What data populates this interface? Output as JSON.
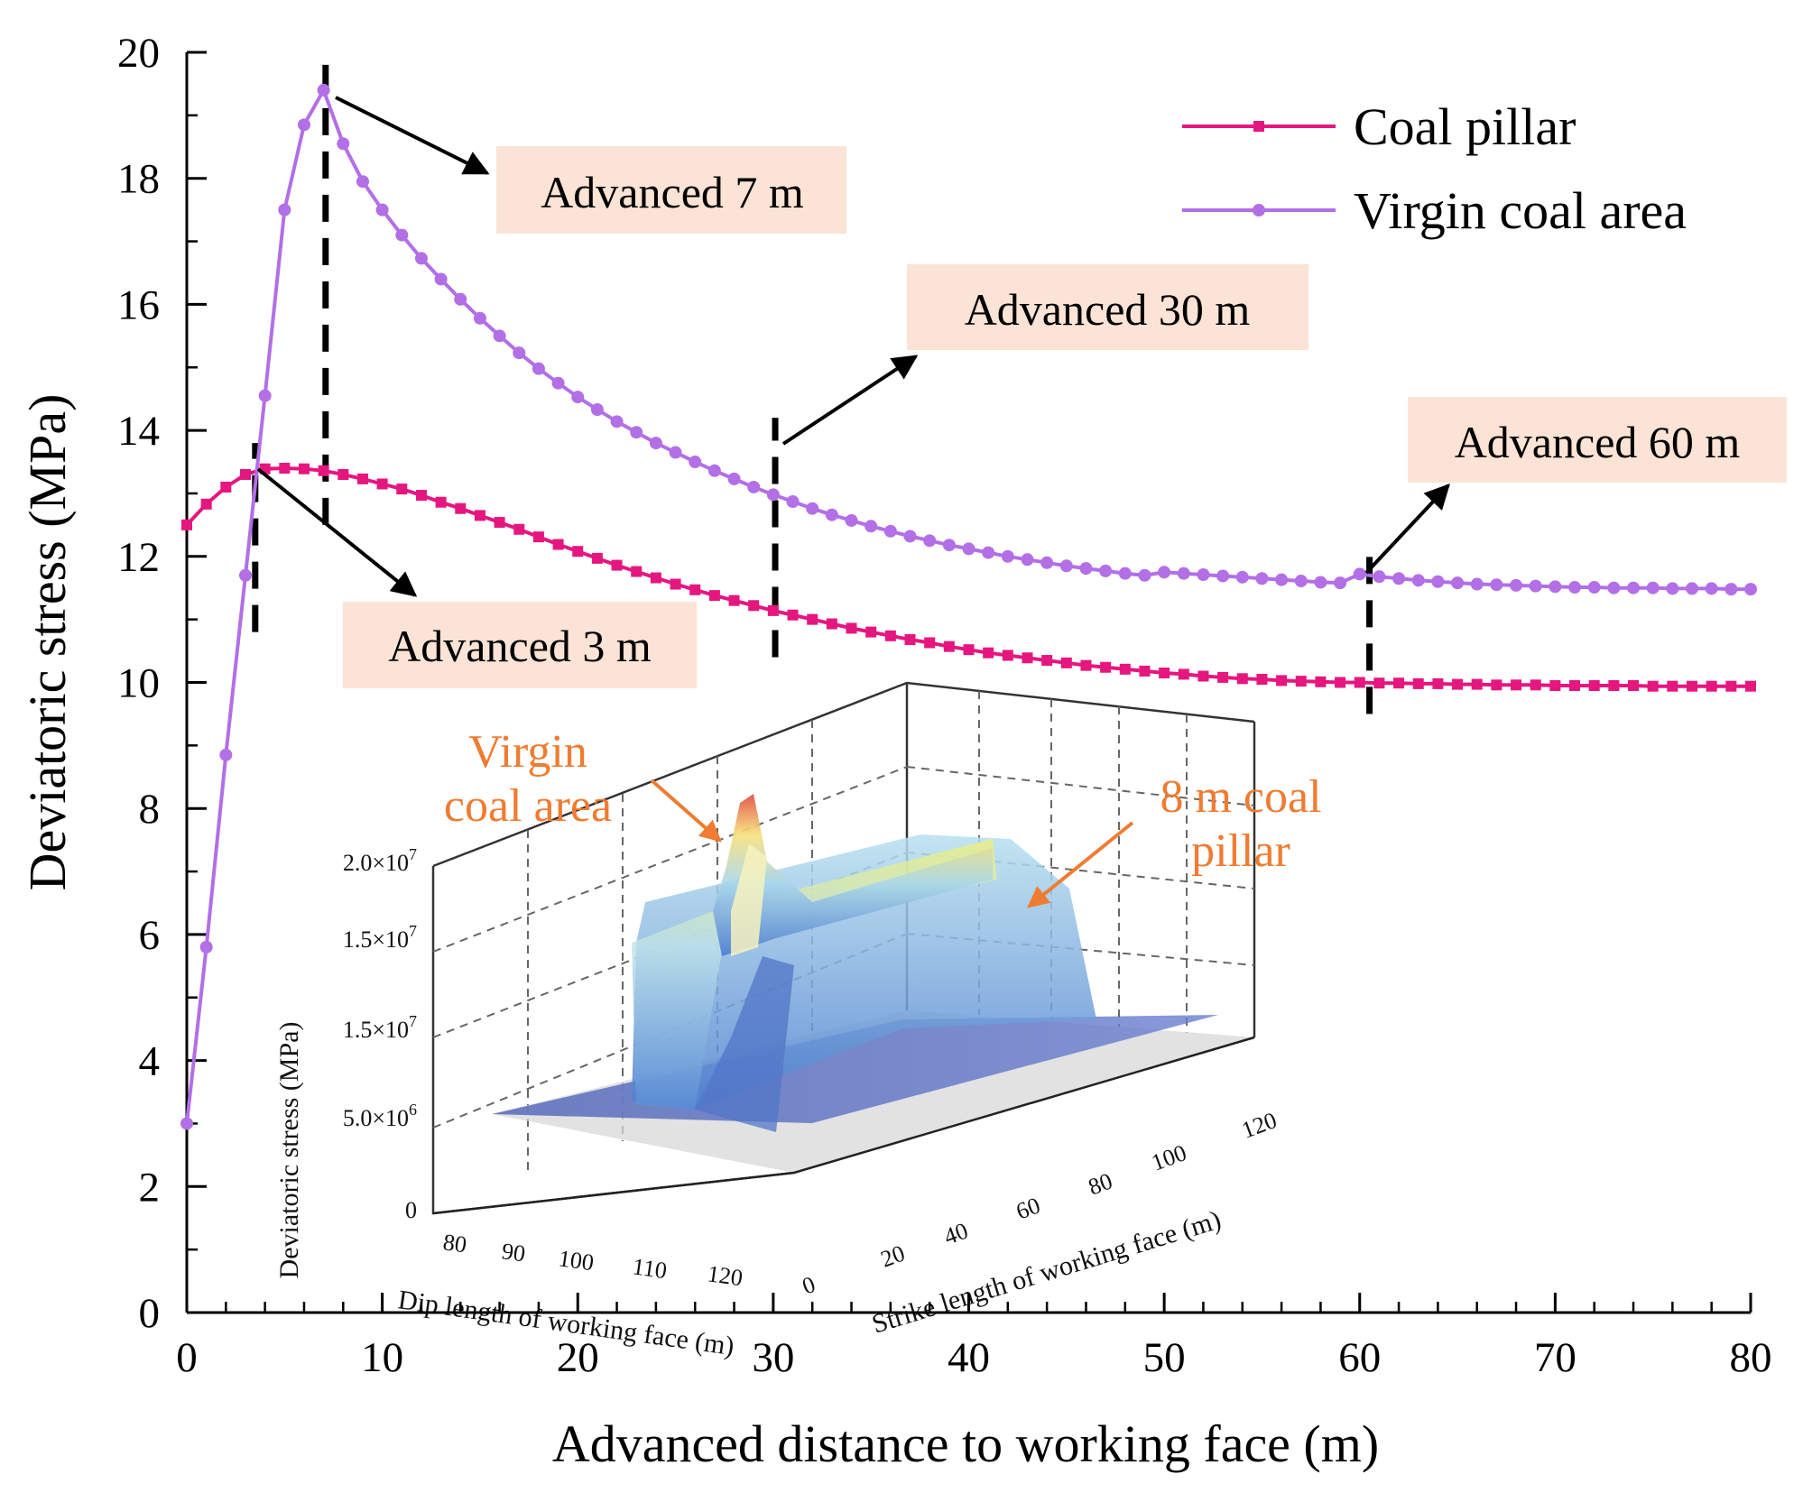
{
  "chart_data": {
    "type": "line",
    "title": "",
    "xlabel": "Advanced distance to working face (m)",
    "ylabel": "Deviatoric stress (MPa)",
    "xlim": [
      0,
      80
    ],
    "ylim": [
      0,
      20
    ],
    "xticks": [
      0,
      10,
      20,
      30,
      40,
      50,
      60,
      70,
      80
    ],
    "yticks": [
      0,
      2,
      4,
      6,
      8,
      10,
      12,
      14,
      16,
      18,
      20
    ],
    "legend_position": "top-right",
    "series": [
      {
        "name": "Coal pillar",
        "color": "#e5177f",
        "marker": "square",
        "x": [
          0,
          1,
          2,
          3,
          4,
          5,
          6,
          7,
          8,
          9,
          10,
          11,
          12,
          13,
          14,
          15,
          16,
          17,
          18,
          19,
          20,
          21,
          22,
          23,
          24,
          25,
          26,
          27,
          28,
          29,
          30,
          31,
          32,
          33,
          34,
          35,
          36,
          37,
          38,
          39,
          40,
          41,
          42,
          43,
          44,
          45,
          46,
          47,
          48,
          49,
          50,
          51,
          52,
          53,
          54,
          55,
          56,
          57,
          58,
          59,
          60,
          61,
          62,
          63,
          64,
          65,
          66,
          67,
          68,
          69,
          70,
          71,
          72,
          73,
          74,
          75,
          76,
          77,
          78,
          79,
          80
        ],
        "values": [
          12.5,
          12.83,
          13.1,
          13.3,
          13.39,
          13.4,
          13.39,
          13.36,
          13.3,
          13.23,
          13.15,
          13.07,
          12.97,
          12.86,
          12.76,
          12.65,
          12.54,
          12.43,
          12.31,
          12.19,
          12.08,
          11.97,
          11.86,
          11.76,
          11.66,
          11.56,
          11.47,
          11.38,
          11.3,
          11.22,
          11.14,
          11.07,
          11.0,
          10.93,
          10.86,
          10.8,
          10.74,
          10.68,
          10.63,
          10.57,
          10.52,
          10.47,
          10.43,
          10.39,
          10.35,
          10.31,
          10.27,
          10.24,
          10.21,
          10.18,
          10.15,
          10.13,
          10.1,
          10.08,
          10.06,
          10.05,
          10.03,
          10.02,
          10.01,
          10.0,
          10.0,
          9.99,
          9.99,
          9.98,
          9.98,
          9.97,
          9.97,
          9.96,
          9.96,
          9.96,
          9.95,
          9.95,
          9.95,
          9.95,
          9.95,
          9.94,
          9.94,
          9.94,
          9.94,
          9.94,
          9.94
        ]
      },
      {
        "name": "Virgin coal area",
        "color": "#b26fe6",
        "marker": "circle",
        "x": [
          0,
          1,
          2,
          3,
          4,
          5,
          6,
          7,
          8,
          9,
          10,
          11,
          12,
          13,
          14,
          15,
          16,
          17,
          18,
          19,
          20,
          21,
          22,
          23,
          24,
          25,
          26,
          27,
          28,
          29,
          30,
          31,
          32,
          33,
          34,
          35,
          36,
          37,
          38,
          39,
          40,
          41,
          42,
          43,
          44,
          45,
          46,
          47,
          48,
          49,
          50,
          51,
          52,
          53,
          54,
          55,
          56,
          57,
          58,
          59,
          60,
          61,
          62,
          63,
          64,
          65,
          66,
          67,
          68,
          69,
          70,
          71,
          72,
          73,
          74,
          75,
          76,
          77,
          78,
          79,
          80
        ],
        "values": [
          3.0,
          5.8,
          8.85,
          11.7,
          14.55,
          17.5,
          18.85,
          19.4,
          18.55,
          17.95,
          17.5,
          17.1,
          16.73,
          16.4,
          16.08,
          15.78,
          15.5,
          15.23,
          14.98,
          14.75,
          14.53,
          14.33,
          14.14,
          13.97,
          13.8,
          13.65,
          13.5,
          13.36,
          13.23,
          13.1,
          12.98,
          12.87,
          12.76,
          12.66,
          12.57,
          12.48,
          12.4,
          12.32,
          12.25,
          12.18,
          12.12,
          12.06,
          12.0,
          11.95,
          11.9,
          11.85,
          11.81,
          11.77,
          11.73,
          11.7,
          11.75,
          11.73,
          11.71,
          11.69,
          11.67,
          11.65,
          11.63,
          11.61,
          11.59,
          11.58,
          11.72,
          11.68,
          11.65,
          11.62,
          11.6,
          11.58,
          11.56,
          11.55,
          11.54,
          11.53,
          11.52,
          11.51,
          11.51,
          11.5,
          11.5,
          11.5,
          11.49,
          11.49,
          11.49,
          11.48,
          11.48
        ]
      }
    ],
    "markers": [
      {
        "x": 3.5,
        "y_from": 10.8,
        "y_to": 13.8
      },
      {
        "x": 7.1,
        "y_from": 12.5,
        "y_to": 20.0
      },
      {
        "x": 30.1,
        "y_from": 10.4,
        "y_to": 14.2
      },
      {
        "x": 60.5,
        "y_from": 9.5,
        "y_to": 12.2
      }
    ],
    "annotations": [
      {
        "text": "Advanced 3 m",
        "point_x": 3.5,
        "point_y": 13.35
      },
      {
        "text": "Advanced 7 m",
        "point_x": 7.1,
        "point_y": 19.4
      },
      {
        "text": "Advanced 30 m",
        "point_x": 30.1,
        "point_y": 13.7
      },
      {
        "text": "Advanced 60 m",
        "point_x": 60.5,
        "point_y": 11.75
      }
    ],
    "inset": {
      "type": "3d-surface",
      "zlabel": "Deviatoric stress (MPa)",
      "dip_label": "Dip length of working face (m)",
      "strike_label": "Strike length of working face (m)",
      "z_ticks": [
        "0",
        "5.0×10",
        "1.5×10",
        "1.5×10",
        "2.0×10"
      ],
      "z_exponents": [
        "",
        "6",
        "7",
        "7",
        "7"
      ],
      "dip_ticks": [
        "80",
        "90",
        "100",
        "110",
        "120"
      ],
      "strike_ticks": [
        "0",
        "20",
        "40",
        "60",
        "80",
        "100",
        "120"
      ],
      "annotation_virgin": [
        "Virgin",
        "coal area"
      ],
      "annotation_pillar": [
        "8 m coal",
        "pillar"
      ]
    }
  }
}
